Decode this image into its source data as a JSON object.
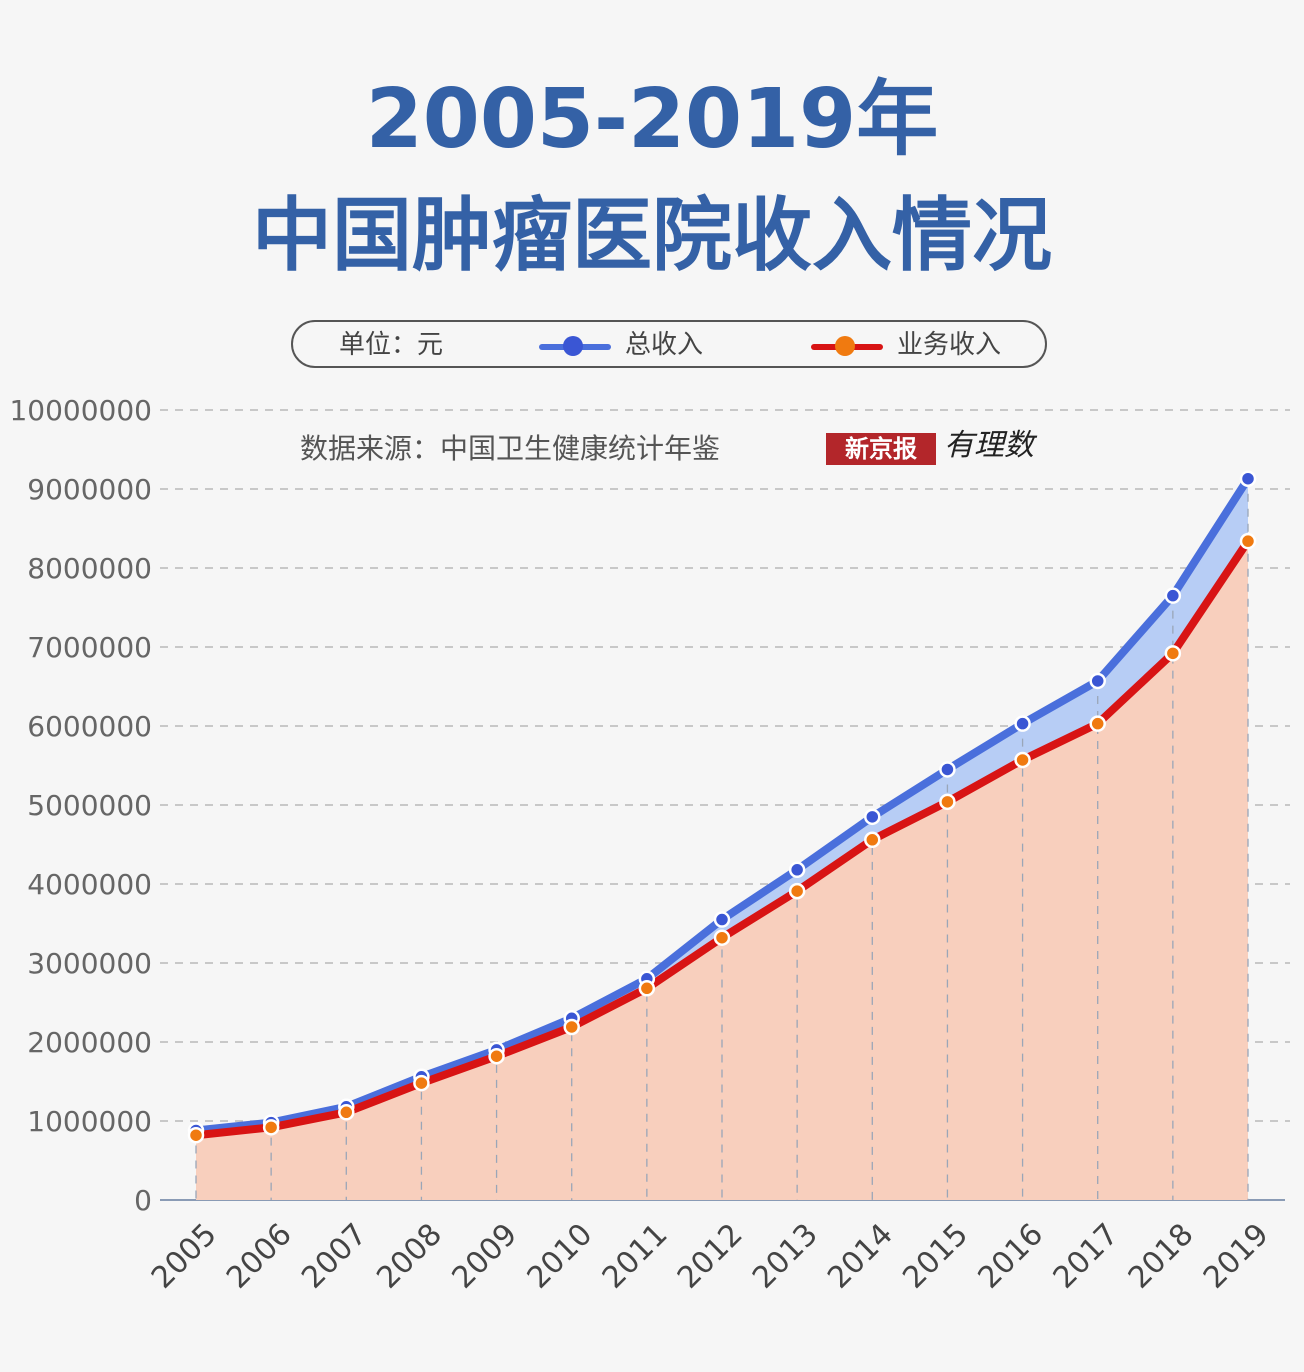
{
  "title": {
    "line1": "2005-2019年",
    "line2": "中国肿瘤医院收入情况"
  },
  "legend": {
    "unit": "单位：元",
    "total_label": "总收入",
    "business_label": "业务收入"
  },
  "source": {
    "text": "数据来源：中国卫生健康统计年鉴",
    "brand": "新京报",
    "brand_sub": "有理数"
  },
  "colors": {
    "total_line": "#4a6fdc",
    "total_fill": "#b7cdf5",
    "total_dot": "#3a56d4",
    "business_line": "#d81414",
    "business_fill": "#f8cfbd",
    "business_dot": "#f07a10",
    "title": "#3461a6"
  },
  "chart_data": {
    "type": "area",
    "categories": [
      "2005",
      "2006",
      "2007",
      "2008",
      "2009",
      "2010",
      "2011",
      "2012",
      "2013",
      "2014",
      "2015",
      "2016",
      "2017",
      "2018",
      "2019"
    ],
    "series": [
      {
        "name": "总收入",
        "values": [
          880000,
          980000,
          1180000,
          1560000,
          1900000,
          2300000,
          2800000,
          3550000,
          4180000,
          4850000,
          5450000,
          6030000,
          6570000,
          7650000,
          9130000
        ]
      },
      {
        "name": "业务收入",
        "values": [
          820000,
          920000,
          1110000,
          1480000,
          1820000,
          2190000,
          2680000,
          3320000,
          3910000,
          4560000,
          5040000,
          5570000,
          6030000,
          6920000,
          8340000
        ]
      }
    ],
    "yticks": [
      "0",
      "1000000",
      "2000000",
      "3000000",
      "4000000",
      "5000000",
      "6000000",
      "7000000",
      "8000000",
      "9000000",
      "10000000"
    ],
    "ylim": [
      0,
      10000000
    ],
    "grid": true,
    "legend": "top"
  }
}
